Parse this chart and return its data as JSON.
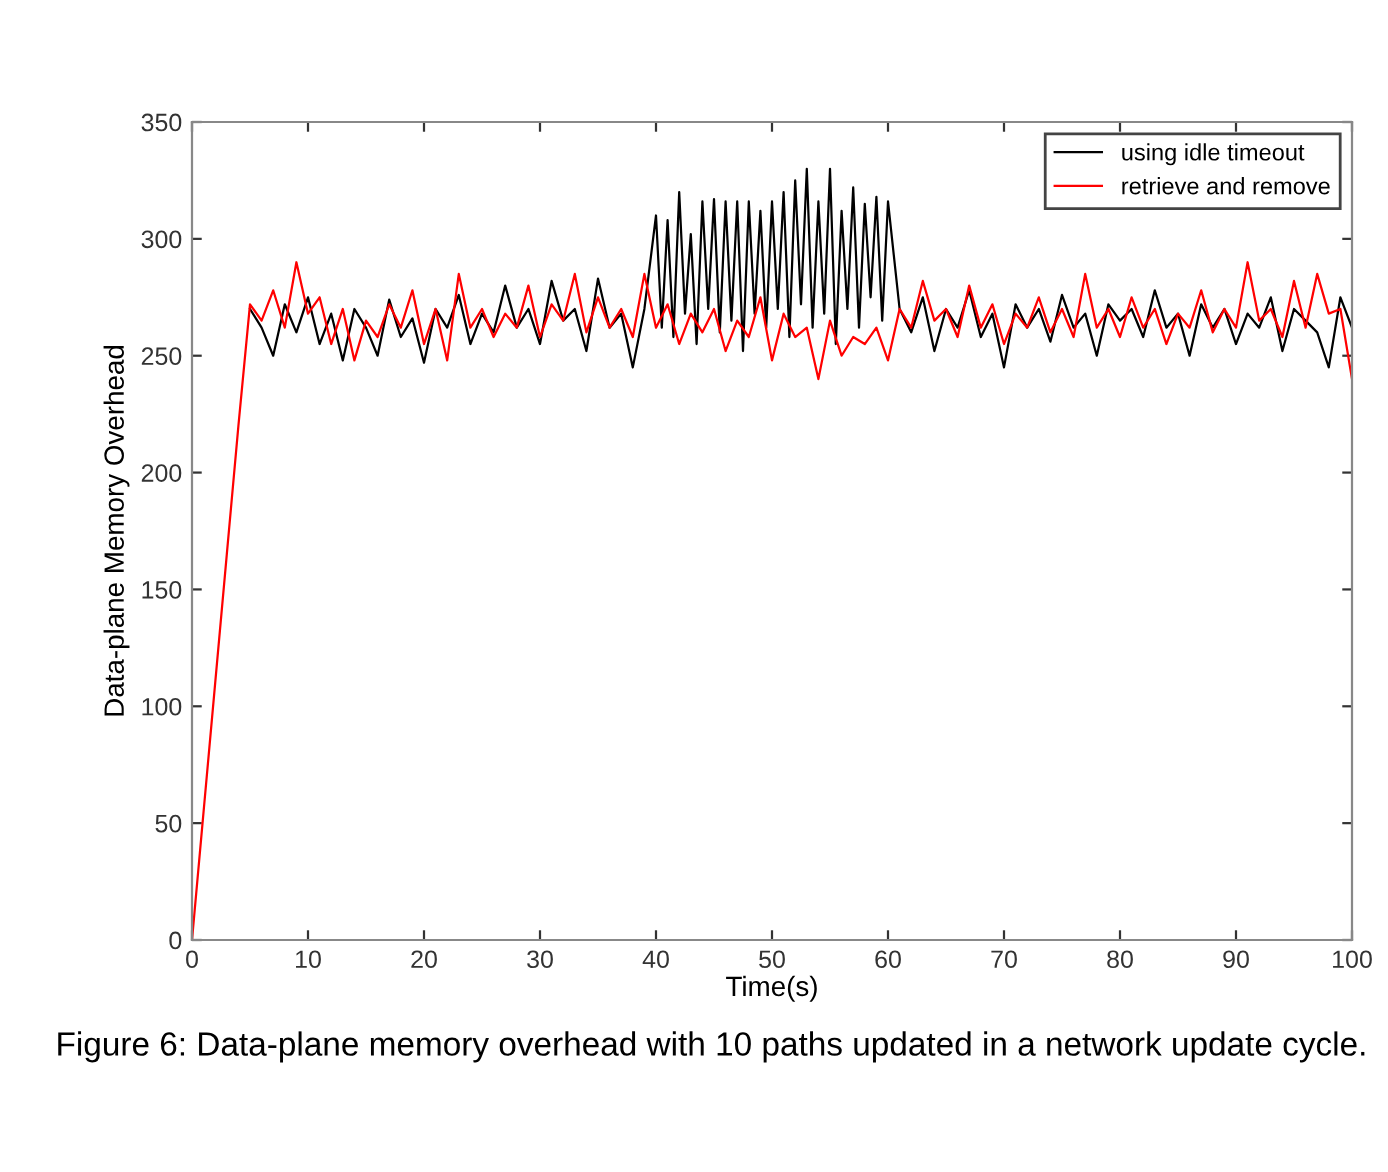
{
  "chart_data": {
    "type": "line",
    "xlabel": "Time(s)",
    "ylabel": "Data-plane Memory Overhead",
    "xlim": [
      0,
      100
    ],
    "xticks": [
      0,
      10,
      20,
      30,
      40,
      50,
      60,
      70,
      80,
      90,
      100
    ],
    "ylim": [
      0,
      350
    ],
    "yticks": [
      0,
      50,
      100,
      150,
      200,
      250,
      300,
      350
    ],
    "grid": false,
    "legend": "top right",
    "line_style": "solid",
    "marker": "none",
    "annotations": [
      "Figure 6: Data-plane memory overhead with 10 paths updated in a network update cycle."
    ],
    "series": [
      {
        "name": "using idle timeout",
        "color": "#000000",
        "x": [
          5,
          6,
          7,
          8,
          9,
          10,
          11,
          12,
          13,
          14,
          15,
          16,
          17,
          18,
          19,
          20,
          21,
          22,
          23,
          24,
          25,
          26,
          27,
          28,
          29,
          30,
          31,
          32,
          33,
          34,
          35,
          36,
          37,
          38,
          39,
          40,
          40.5,
          41,
          41.5,
          42,
          42.5,
          43,
          43.5,
          44,
          44.5,
          45,
          45.5,
          46,
          46.5,
          47,
          47.5,
          48,
          48.5,
          49,
          49.5,
          50,
          50.5,
          51,
          51.5,
          52,
          52.5,
          53,
          53.5,
          54,
          54.5,
          55,
          55.5,
          56,
          56.5,
          57,
          57.5,
          58,
          58.5,
          59,
          59.5,
          60,
          61,
          62,
          63,
          64,
          65,
          66,
          67,
          68,
          69,
          70,
          71,
          72,
          73,
          74,
          75,
          76,
          77,
          78,
          79,
          80,
          81,
          82,
          83,
          84,
          85,
          86,
          87,
          88,
          89,
          90,
          91,
          92,
          93,
          94,
          95,
          96,
          97,
          98,
          99,
          100
        ],
        "values": [
          270,
          262,
          250,
          272,
          260,
          275,
          255,
          268,
          248,
          270,
          262,
          250,
          274,
          258,
          266,
          247,
          270,
          262,
          276,
          255,
          268,
          260,
          280,
          262,
          270,
          255,
          282,
          265,
          270,
          252,
          283,
          262,
          268,
          245,
          270,
          310,
          262,
          308,
          258,
          320,
          268,
          302,
          255,
          316,
          270,
          317,
          260,
          316,
          265,
          316,
          252,
          316,
          268,
          312,
          262,
          316,
          270,
          320,
          258,
          325,
          272,
          330,
          262,
          316,
          268,
          330,
          255,
          312,
          270,
          322,
          262,
          315,
          275,
          318,
          265,
          316,
          270,
          260,
          275,
          252,
          270,
          262,
          278,
          258,
          268,
          245,
          272,
          262,
          270,
          256,
          276,
          262,
          268,
          250,
          272,
          265,
          270,
          258,
          278,
          262,
          268,
          250,
          272,
          262,
          270,
          255,
          268,
          262,
          275,
          252,
          270,
          265,
          260,
          245,
          275,
          262
        ]
      },
      {
        "name": "retrieve and remove",
        "color": "#ff0000",
        "x": [
          0,
          1,
          2,
          3,
          4,
          5,
          6,
          7,
          8,
          9,
          10,
          11,
          12,
          13,
          14,
          15,
          16,
          17,
          18,
          19,
          20,
          21,
          22,
          23,
          24,
          25,
          26,
          27,
          28,
          29,
          30,
          31,
          32,
          33,
          34,
          35,
          36,
          37,
          38,
          39,
          40,
          41,
          42,
          43,
          44,
          45,
          46,
          47,
          48,
          49,
          50,
          51,
          52,
          53,
          54,
          55,
          56,
          57,
          58,
          59,
          60,
          61,
          62,
          63,
          64,
          65,
          66,
          67,
          68,
          69,
          70,
          71,
          72,
          73,
          74,
          75,
          76,
          77,
          78,
          79,
          80,
          81,
          82,
          83,
          84,
          85,
          86,
          87,
          88,
          89,
          90,
          91,
          92,
          93,
          94,
          95,
          96,
          97,
          98,
          99,
          100
        ],
        "values": [
          0,
          55,
          110,
          165,
          220,
          272,
          265,
          278,
          262,
          290,
          268,
          275,
          255,
          270,
          248,
          265,
          258,
          272,
          262,
          278,
          255,
          270,
          248,
          285,
          262,
          270,
          258,
          268,
          262,
          280,
          258,
          272,
          265,
          285,
          260,
          275,
          262,
          270,
          258,
          285,
          262,
          272,
          255,
          268,
          260,
          270,
          252,
          265,
          258,
          275,
          248,
          268,
          258,
          262,
          240,
          265,
          250,
          258,
          255,
          262,
          248,
          270,
          262,
          282,
          265,
          270,
          258,
          280,
          262,
          272,
          255,
          268,
          262,
          275,
          260,
          270,
          258,
          285,
          262,
          270,
          258,
          275,
          262,
          270,
          255,
          268,
          262,
          278,
          260,
          270,
          262,
          290,
          265,
          270,
          258,
          282,
          262,
          285,
          268,
          270,
          240
        ]
      }
    ]
  }
}
